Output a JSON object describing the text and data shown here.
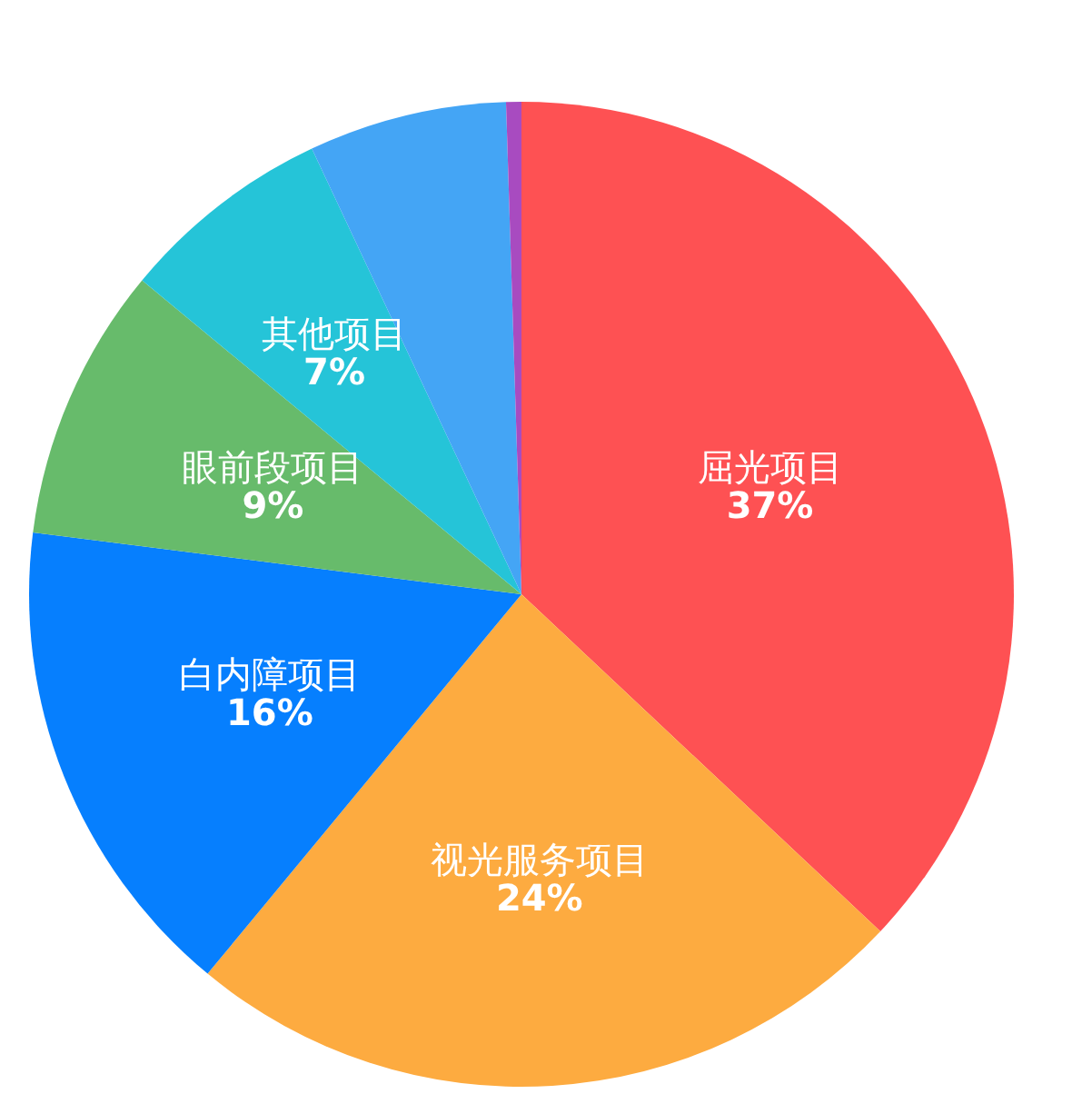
{
  "chart_data": {
    "type": "pie",
    "categories": [
      "屈光项目",
      "视光服务项目",
      "白内障项目",
      "眼前段项目",
      "其他项目",
      null,
      null
    ],
    "values": [
      37,
      24,
      16,
      9,
      7,
      6.5,
      0.5
    ],
    "colors": [
      "#fe5153",
      "#fdab40",
      "#067ffe",
      "#67bb6b",
      "#25c4d8",
      "#44a5f5",
      "#a84bc0"
    ],
    "value_labels": [
      "37%",
      "24%",
      "16%",
      "9%",
      "7%",
      null,
      null
    ]
  }
}
